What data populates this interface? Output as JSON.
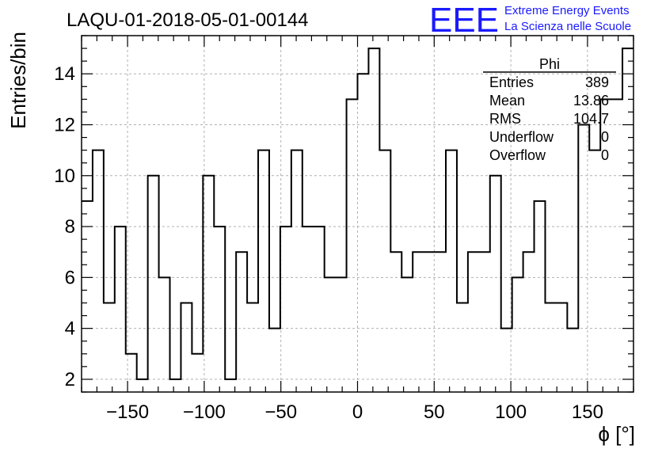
{
  "header": {
    "title": "LAQU-01-2018-05-01-00144",
    "logo_text": "EEE",
    "logo_line1": "Extreme Energy Events",
    "logo_line2": "La Scienza nelle Scuole"
  },
  "colors": {
    "logo": "#1a1aff",
    "line": "#000000",
    "grid": "#b0b0b0"
  },
  "chart_data": {
    "type": "histogram",
    "title": "LAQU-01-2018-05-01-00144",
    "xlabel": "ϕ [°]",
    "ylabel": "Entries/bin",
    "xlim": [
      -180,
      180
    ],
    "ylim": [
      1.5,
      15.5
    ],
    "grid": true,
    "x_ticks": [
      -150,
      -100,
      -50,
      0,
      50,
      100,
      150
    ],
    "y_ticks": [
      2,
      4,
      6,
      8,
      10,
      12,
      14
    ],
    "bin_edges": [
      -180,
      -172.8,
      -165.6,
      -158.4,
      -151.2,
      -144,
      -136.8,
      -129.6,
      -122.4,
      -115.2,
      -108,
      -100.8,
      -93.6,
      -86.4,
      -79.2,
      -72,
      -64.8,
      -57.6,
      -50.4,
      -43.2,
      -36,
      -28.8,
      -21.6,
      -14.4,
      -7.2,
      0,
      7.2,
      14.4,
      21.6,
      28.8,
      36,
      43.2,
      50.4,
      57.6,
      64.8,
      72,
      79.2,
      86.4,
      93.6,
      100.8,
      108,
      115.2,
      122.4,
      129.6,
      136.8,
      144,
      151.2,
      158.4,
      165.6,
      172.8,
      180
    ],
    "counts": [
      9,
      11,
      5,
      8,
      3,
      2,
      10,
      6,
      2,
      5,
      3,
      10,
      8,
      2,
      7,
      5,
      11,
      4,
      8,
      11,
      8,
      8,
      6,
      6,
      13,
      14,
      15,
      11,
      7,
      6,
      7,
      7,
      7,
      11,
      5,
      7,
      7,
      10,
      4,
      6,
      7,
      9,
      5,
      5,
      4,
      12,
      11,
      13,
      13,
      15
    ],
    "stats": {
      "name": "Phi",
      "rows": [
        {
          "label": "Entries",
          "value": "389"
        },
        {
          "label": "Mean",
          "value": "13.86"
        },
        {
          "label": "RMS",
          "value": "104.7"
        },
        {
          "label": "Underflow",
          "value": "0"
        },
        {
          "label": "Overflow",
          "value": "0"
        }
      ]
    }
  }
}
